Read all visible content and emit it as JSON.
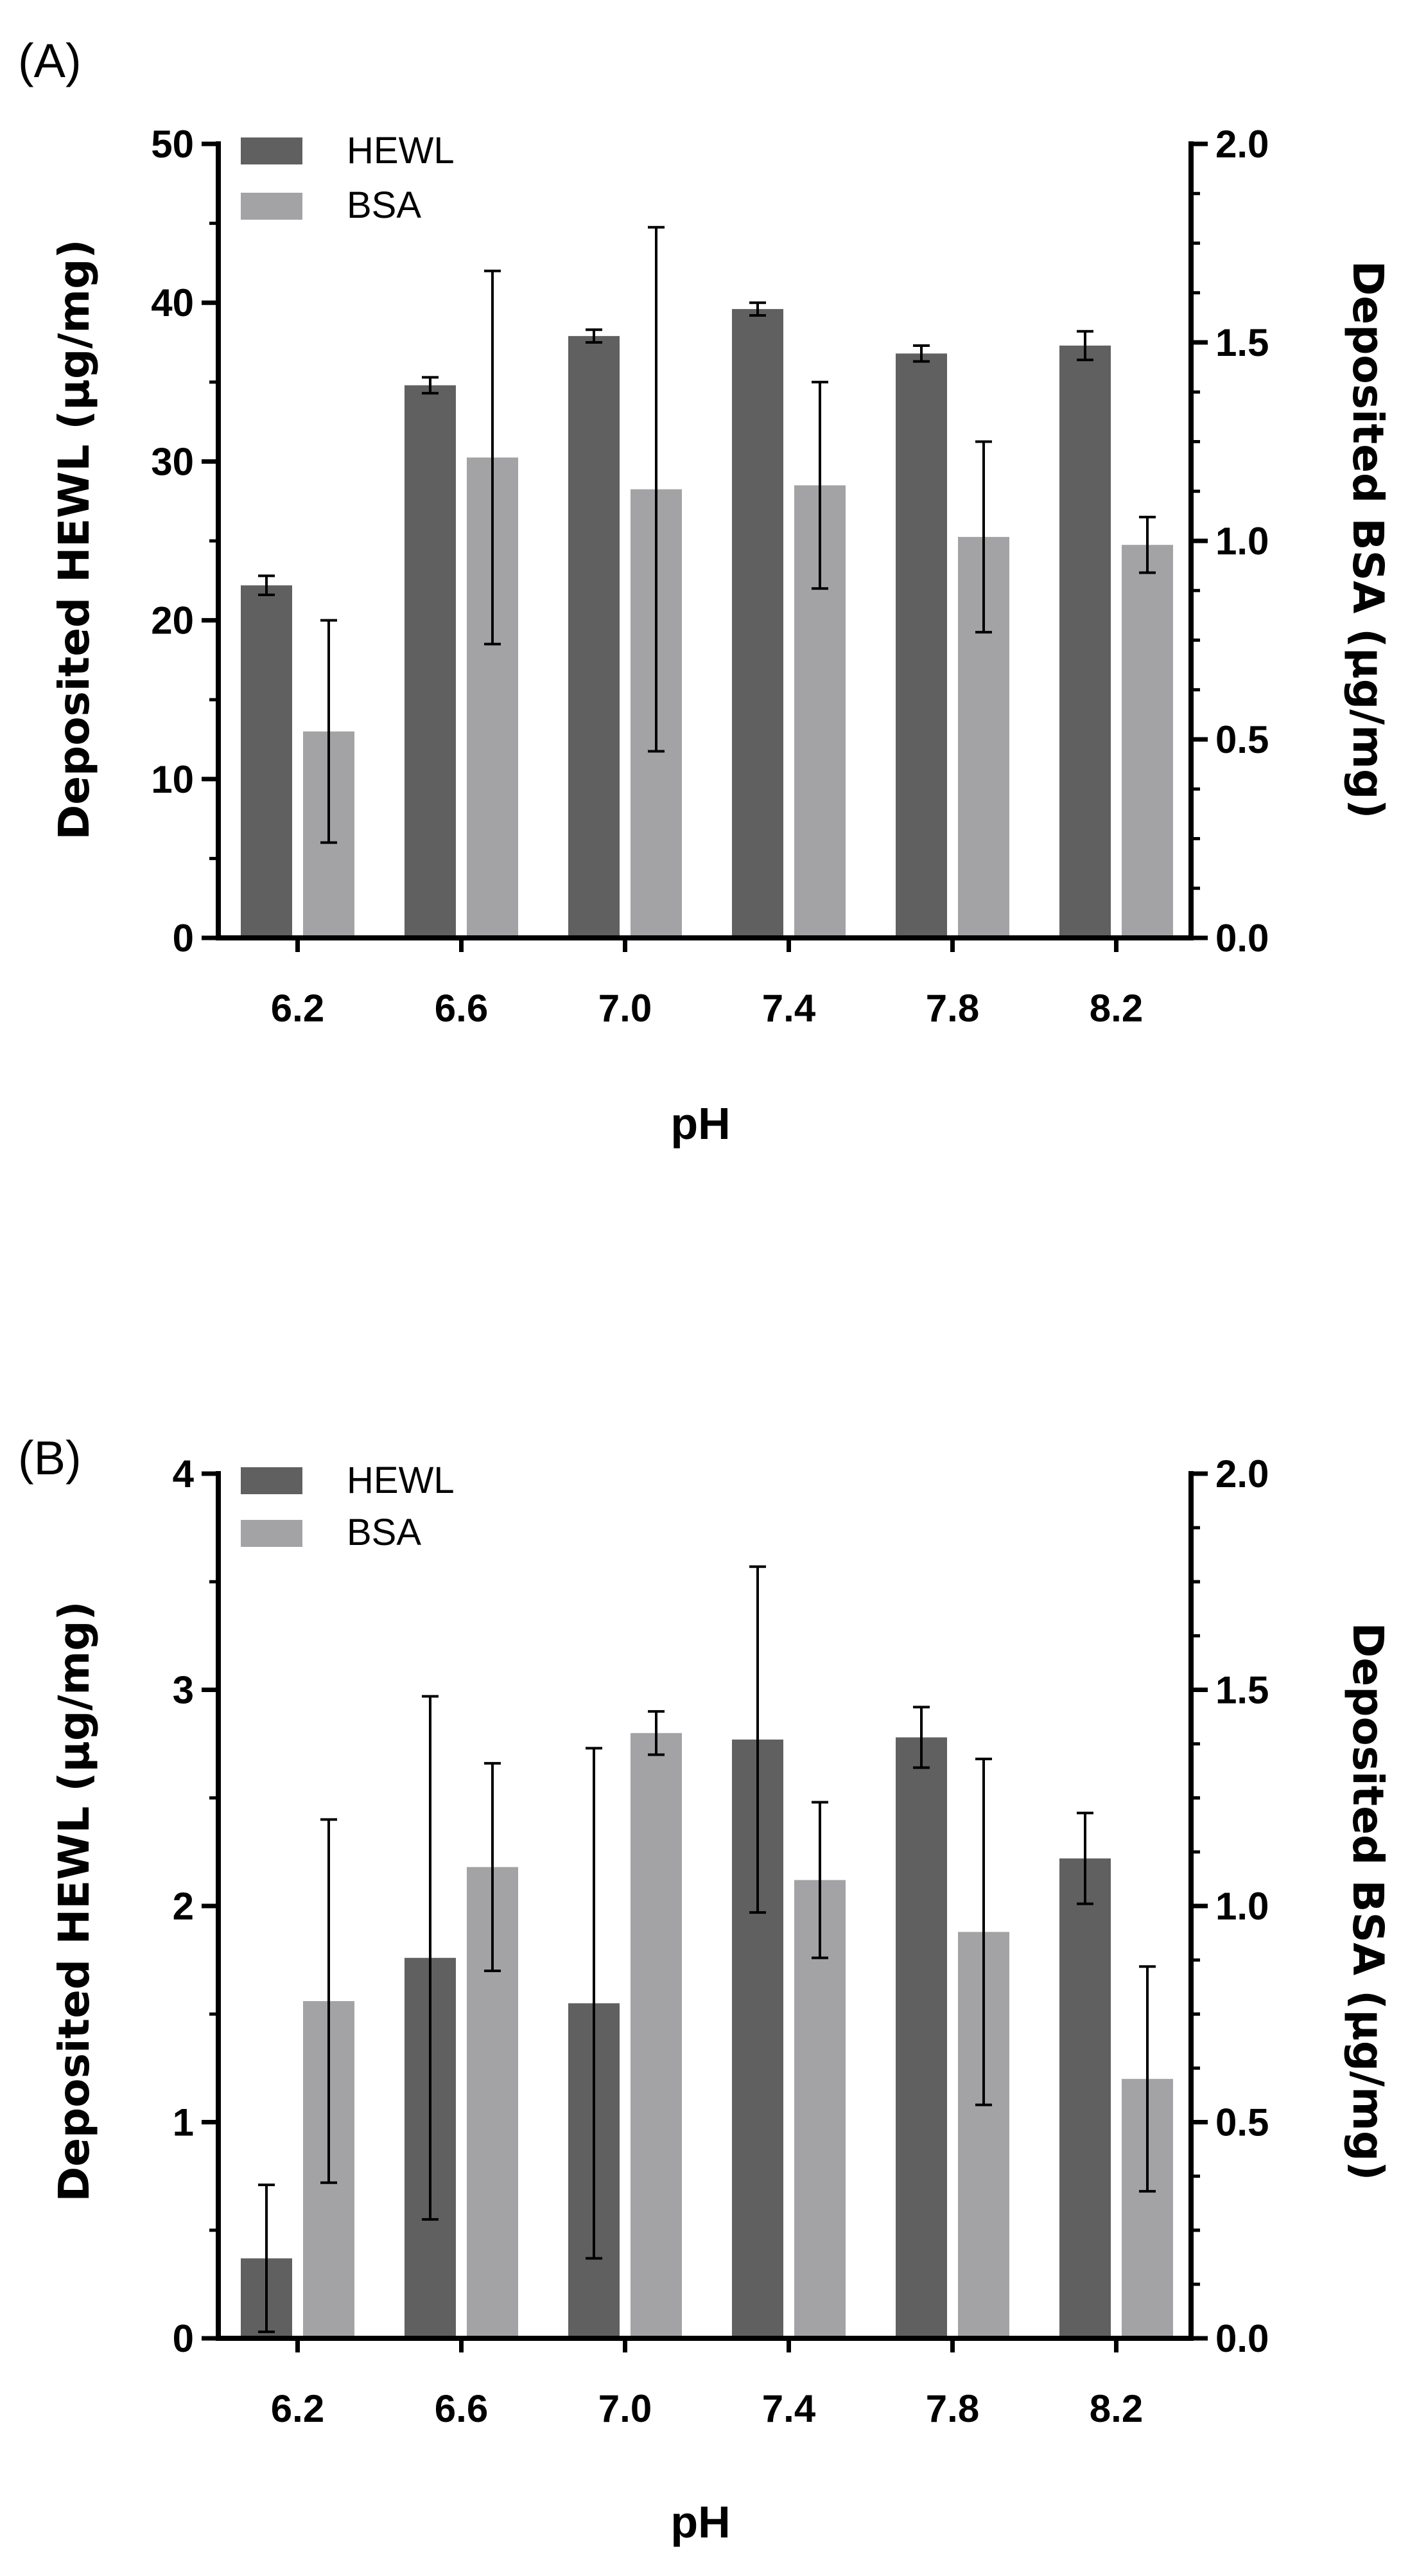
{
  "colors": {
    "hewl": "#606060",
    "bsa": "#a3a3a6",
    "axis": "#000000"
  },
  "chart_data": [
    {
      "panel": "(A)",
      "type": "bar",
      "xlabel": "pH",
      "ylabel_left": "Deposited HEWL (μg/mg)",
      "ylabel_right": "Deposited BSA (μg/mg)",
      "categories": [
        "6.2",
        "6.6",
        "7.0",
        "7.4",
        "7.8",
        "8.2"
      ],
      "left_axis": {
        "min": 0,
        "max": 50,
        "ticks": [
          "0",
          "10",
          "20",
          "30",
          "40",
          "50"
        ]
      },
      "right_axis": {
        "min": 0,
        "max": 2,
        "ticks": [
          "0.0",
          "0.5",
          "1.0",
          "1.5",
          "2.0"
        ]
      },
      "legend": [
        "HEWL",
        "BSA"
      ],
      "series": [
        {
          "name": "HEWL",
          "axis": "left",
          "values": [
            22.2,
            34.8,
            37.9,
            39.6,
            36.8,
            37.3
          ],
          "errors": [
            0.6,
            0.5,
            0.4,
            0.4,
            0.5,
            0.9
          ]
        },
        {
          "name": "BSA",
          "axis": "right",
          "values": [
            0.52,
            1.21,
            1.13,
            1.14,
            1.01,
            0.99
          ],
          "errors": [
            0.28,
            0.47,
            0.66,
            0.26,
            0.24,
            0.07
          ]
        }
      ]
    },
    {
      "panel": "(B)",
      "type": "bar",
      "xlabel": "pH",
      "ylabel_left": "Deposited HEWL (μg/mg)",
      "ylabel_right": "Deposited BSA (μg/mg)",
      "categories": [
        "6.2",
        "6.6",
        "7.0",
        "7.4",
        "7.8",
        "8.2"
      ],
      "left_axis": {
        "min": 0,
        "max": 4,
        "ticks": [
          "0",
          "1",
          "2",
          "3",
          "4"
        ]
      },
      "right_axis": {
        "min": 0,
        "max": 2,
        "ticks": [
          "0.0",
          "0.5",
          "1.0",
          "1.5",
          "2.0"
        ]
      },
      "legend": [
        "HEWL",
        "BSA"
      ],
      "series": [
        {
          "name": "HEWL",
          "axis": "left",
          "values": [
            0.37,
            1.76,
            1.55,
            2.77,
            2.78,
            2.22
          ],
          "errors": [
            0.34,
            1.21,
            1.18,
            0.8,
            0.14,
            0.21
          ]
        },
        {
          "name": "BSA",
          "axis": "right",
          "values": [
            0.78,
            1.09,
            1.4,
            1.06,
            0.94,
            0.6
          ],
          "errors": [
            0.42,
            0.24,
            0.05,
            0.18,
            0.4,
            0.26
          ]
        }
      ]
    }
  ]
}
